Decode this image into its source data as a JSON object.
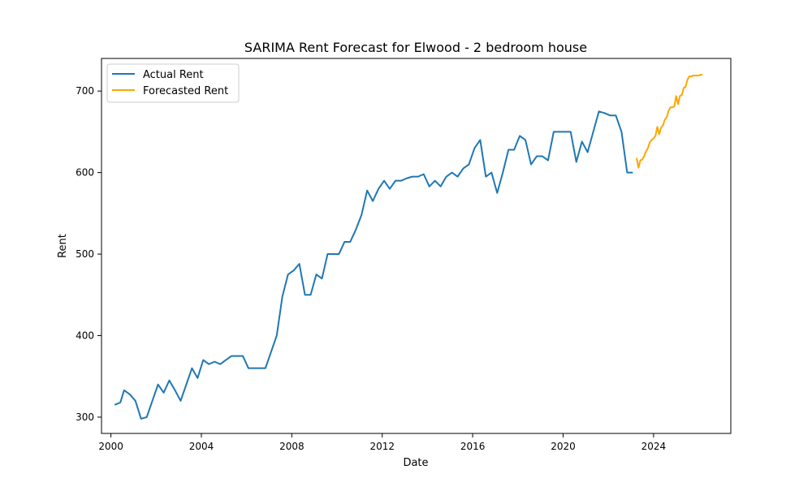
{
  "chart_data": {
    "type": "line",
    "title": "SARIMA Rent Forecast for Elwood - 2 bedroom house",
    "xlabel": "Date",
    "ylabel": "Rent",
    "xlim": [
      "1999-08-01",
      "2027-06-01"
    ],
    "ylim": [
      280,
      740
    ],
    "grid": false,
    "legend_position": "top-left",
    "x_ticks": [
      "2000",
      "2004",
      "2008",
      "2012",
      "2016",
      "2020",
      "2024"
    ],
    "y_ticks": [
      300,
      400,
      500,
      600,
      700
    ],
    "series": [
      {
        "name": "Actual Rent",
        "color": "#1f77b4",
        "x": [
          "2000-03",
          "2000-06",
          "2000-08",
          "2000-11",
          "2001-02",
          "2001-05",
          "2001-08",
          "2001-11",
          "2002-02",
          "2002-05",
          "2002-08",
          "2002-11",
          "2003-02",
          "2003-05",
          "2003-08",
          "2003-11",
          "2004-02",
          "2004-05",
          "2004-08",
          "2004-11",
          "2005-02",
          "2005-05",
          "2005-08",
          "2005-11",
          "2006-02",
          "2006-05",
          "2006-08",
          "2006-11",
          "2007-02",
          "2007-05",
          "2007-08",
          "2007-11",
          "2008-02",
          "2008-05",
          "2008-08",
          "2008-11",
          "2009-02",
          "2009-05",
          "2009-08",
          "2009-11",
          "2010-02",
          "2010-05",
          "2010-08",
          "2010-11",
          "2011-02",
          "2011-05",
          "2011-08",
          "2011-11",
          "2012-02",
          "2012-05",
          "2012-08",
          "2012-11",
          "2013-02",
          "2013-05",
          "2013-08",
          "2013-11",
          "2014-02",
          "2014-05",
          "2014-08",
          "2014-11",
          "2015-02",
          "2015-05",
          "2015-08",
          "2015-11",
          "2016-02",
          "2016-05",
          "2016-08",
          "2016-11",
          "2017-02",
          "2017-05",
          "2017-08",
          "2017-11",
          "2018-02",
          "2018-05",
          "2018-08",
          "2018-11",
          "2019-02",
          "2019-05",
          "2019-08",
          "2019-11",
          "2020-02",
          "2020-05",
          "2020-08",
          "2020-11",
          "2021-02",
          "2021-05",
          "2021-08",
          "2021-11",
          "2022-02",
          "2022-05",
          "2022-08",
          "2022-11",
          "2023-02"
        ],
        "values": [
          315,
          318,
          333,
          328,
          320,
          298,
          300,
          320,
          340,
          330,
          345,
          333,
          320,
          340,
          360,
          348,
          370,
          365,
          368,
          365,
          370,
          375,
          375,
          375,
          360,
          360,
          360,
          360,
          380,
          400,
          448,
          475,
          480,
          488,
          450,
          450,
          475,
          470,
          500,
          500,
          500,
          515,
          515,
          530,
          548,
          578,
          565,
          580,
          590,
          580,
          590,
          590,
          593,
          595,
          595,
          598,
          583,
          590,
          583,
          595,
          600,
          595,
          605,
          610,
          630,
          640,
          595,
          600,
          575,
          600,
          628,
          628,
          645,
          640,
          610,
          620,
          620,
          615,
          650,
          650,
          650,
          650,
          613,
          638,
          625,
          650,
          675,
          673,
          670,
          670,
          650,
          600,
          600
        ]
      },
      {
        "name": "Forecasted Rent",
        "color": "#ffa500",
        "x": [
          "2023-04",
          "2023-05",
          "2023-06",
          "2023-07",
          "2023-08",
          "2023-09",
          "2023-10",
          "2023-11",
          "2023-12",
          "2024-01",
          "2024-02",
          "2024-03",
          "2024-04",
          "2024-05",
          "2024-06",
          "2024-07",
          "2024-08",
          "2024-09",
          "2024-10",
          "2024-11",
          "2024-12",
          "2025-01",
          "2025-02",
          "2025-03",
          "2025-04",
          "2025-05",
          "2025-06",
          "2025-07",
          "2025-08",
          "2025-09",
          "2025-10",
          "2025-11",
          "2025-12",
          "2026-01",
          "2026-02",
          "2026-03"
        ],
        "values": [
          618,
          606,
          615,
          616,
          620,
          626,
          630,
          637,
          640,
          642,
          645,
          656,
          647,
          655,
          658,
          665,
          668,
          676,
          680,
          680,
          681,
          694,
          684,
          694,
          695,
          704,
          705,
          714,
          718,
          718,
          719,
          719,
          719,
          719,
          720,
          720
        ]
      }
    ]
  }
}
